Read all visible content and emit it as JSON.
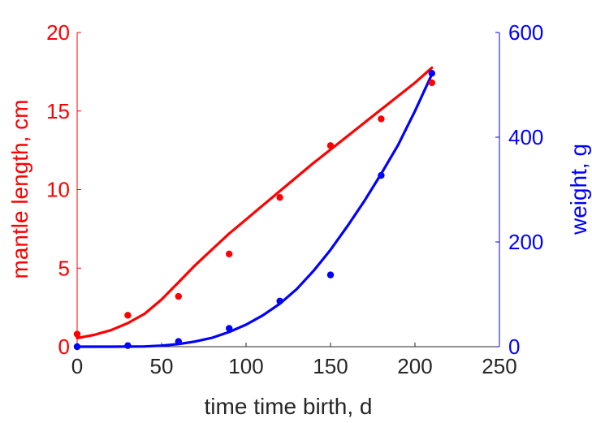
{
  "chart_data": {
    "type": "line",
    "xlabel": "time time birth, d",
    "x_axis": {
      "min": 0,
      "max": 250,
      "ticks": [
        0,
        50,
        100,
        150,
        200,
        250
      ],
      "tick_labels": [
        "0",
        "50",
        "100",
        "150",
        "200",
        "250"
      ]
    },
    "left_axis": {
      "label": "mantle length, cm",
      "color": "#ff0000",
      "min": 0,
      "max": 20,
      "ticks": [
        0,
        5,
        10,
        15,
        20
      ],
      "tick_labels": [
        "0",
        "5",
        "10",
        "15",
        "20"
      ]
    },
    "right_axis": {
      "label": "weight, g",
      "color": "#0000ff",
      "min": 0,
      "max": 600,
      "ticks": [
        0,
        200,
        400,
        600
      ],
      "tick_labels": [
        "0",
        "200",
        "400",
        "600"
      ]
    },
    "grid": false,
    "legend": "none",
    "series": [
      {
        "axis": "left",
        "color": "#ff0000",
        "points": [
          [
            0,
            0.8
          ],
          [
            30,
            2.0
          ],
          [
            60,
            3.2
          ],
          [
            90,
            5.9
          ],
          [
            120,
            9.5
          ],
          [
            150,
            12.8
          ],
          [
            180,
            14.5
          ],
          [
            210,
            16.8
          ]
        ],
        "fit": [
          [
            0,
            0.55
          ],
          [
            10,
            0.75
          ],
          [
            20,
            1.05
          ],
          [
            30,
            1.5
          ],
          [
            40,
            2.1
          ],
          [
            50,
            3.0
          ],
          [
            60,
            4.1
          ],
          [
            70,
            5.2
          ],
          [
            80,
            6.2
          ],
          [
            90,
            7.2
          ],
          [
            100,
            8.1
          ],
          [
            110,
            9.0
          ],
          [
            120,
            9.9
          ],
          [
            130,
            10.8
          ],
          [
            140,
            11.7
          ],
          [
            150,
            12.55
          ],
          [
            160,
            13.4
          ],
          [
            170,
            14.25
          ],
          [
            180,
            15.1
          ],
          [
            190,
            15.95
          ],
          [
            200,
            16.8
          ],
          [
            210,
            17.75
          ]
        ]
      },
      {
        "axis": "right",
        "color": "#0000ff",
        "points": [
          [
            0,
            0
          ],
          [
            30,
            2
          ],
          [
            60,
            10
          ],
          [
            90,
            35
          ],
          [
            120,
            87
          ],
          [
            150,
            137
          ],
          [
            180,
            327
          ],
          [
            210,
            522
          ]
        ],
        "fit": [
          [
            0,
            0
          ],
          [
            20,
            0
          ],
          [
            40,
            0.5
          ],
          [
            50,
            2
          ],
          [
            60,
            5
          ],
          [
            70,
            10
          ],
          [
            80,
            17
          ],
          [
            90,
            28
          ],
          [
            100,
            42
          ],
          [
            110,
            60
          ],
          [
            120,
            82
          ],
          [
            130,
            110
          ],
          [
            140,
            145
          ],
          [
            150,
            185
          ],
          [
            160,
            230
          ],
          [
            170,
            278
          ],
          [
            180,
            330
          ],
          [
            190,
            385
          ],
          [
            200,
            450
          ],
          [
            210,
            520
          ]
        ]
      }
    ]
  }
}
